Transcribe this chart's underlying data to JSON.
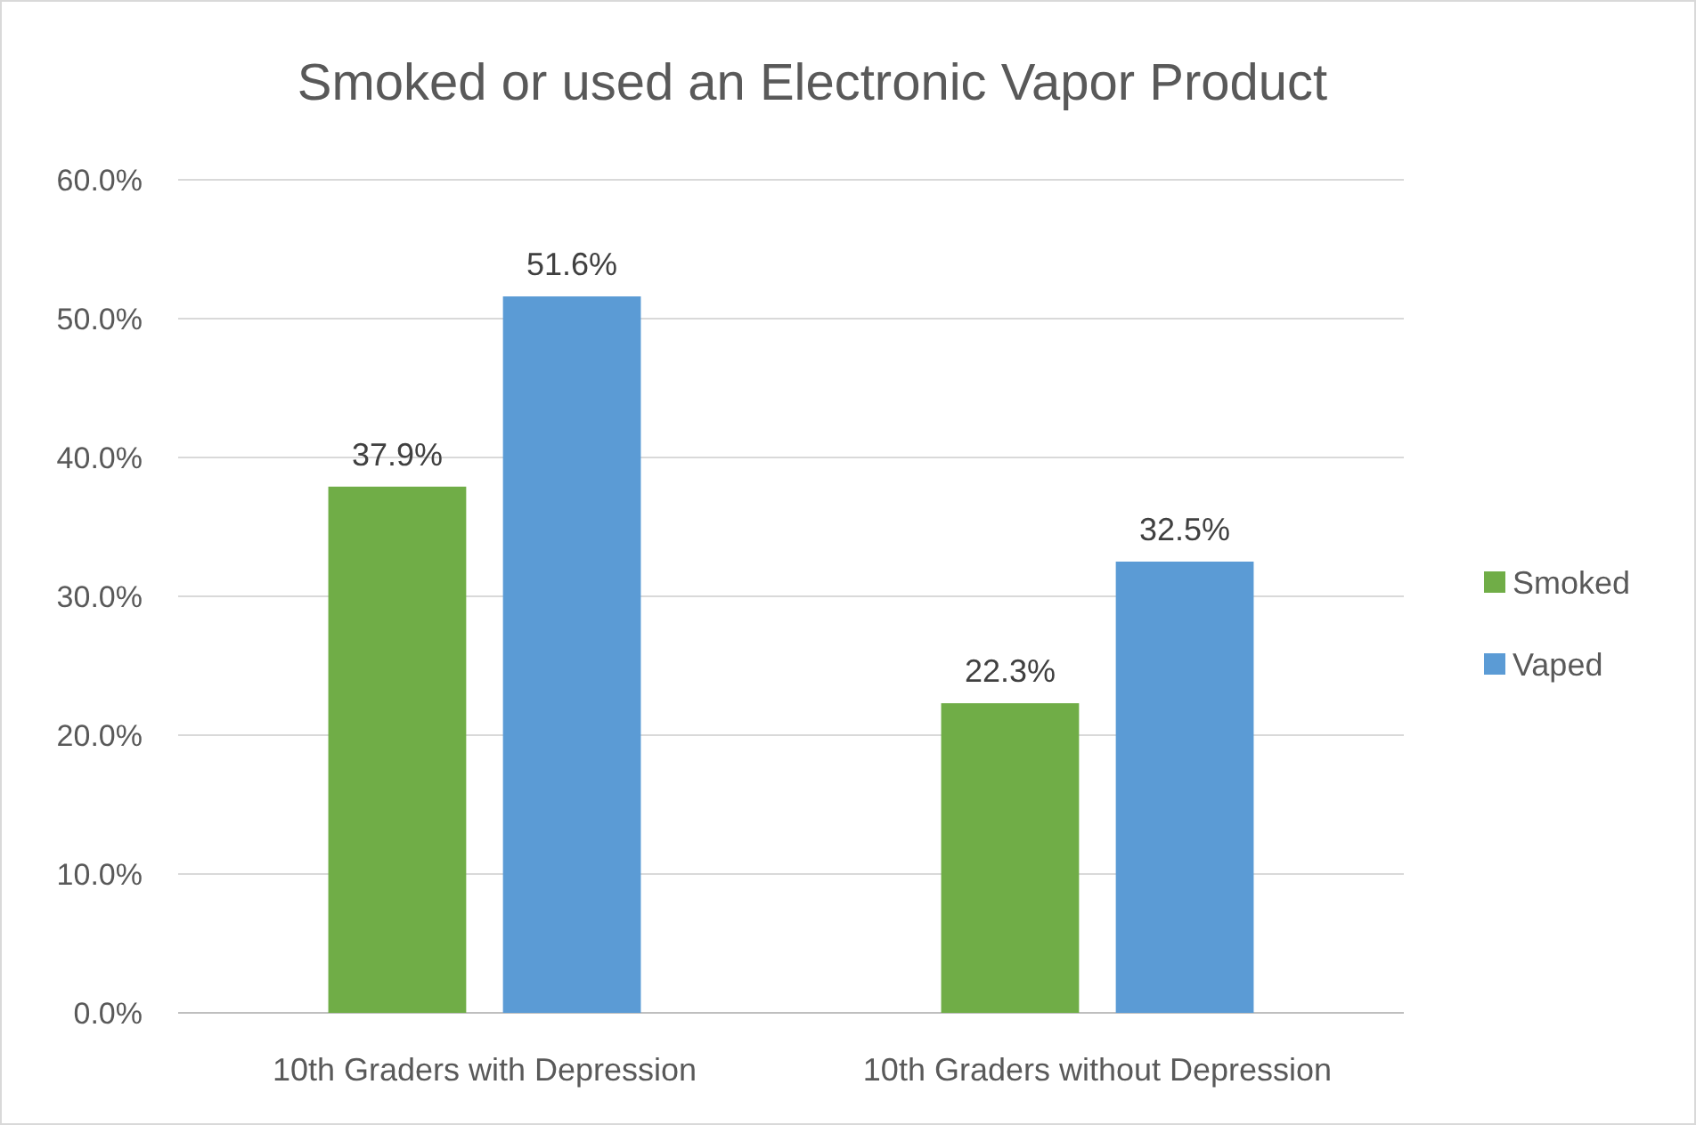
{
  "chart_data": {
    "type": "bar",
    "title": "Smoked or used an Electronic Vapor Product",
    "categories": [
      "10th Graders with Depression",
      "10th Graders without Depression"
    ],
    "series": [
      {
        "name": "Smoked",
        "color": "#70ad47",
        "values": [
          37.9,
          22.3
        ],
        "value_labels": [
          "37.9%",
          "22.3%"
        ]
      },
      {
        "name": "Vaped",
        "color": "#5b9bd5",
        "values": [
          51.6,
          32.5
        ],
        "value_labels": [
          "51.6%",
          "32.5%"
        ]
      }
    ],
    "ylim": [
      0,
      60
    ],
    "yticks": [
      {
        "value": 0,
        "label": "0.0%"
      },
      {
        "value": 10,
        "label": "10.0%"
      },
      {
        "value": 20,
        "label": "20.0%"
      },
      {
        "value": 30,
        "label": "30.0%"
      },
      {
        "value": 40,
        "label": "40.0%"
      },
      {
        "value": 50,
        "label": "50.0%"
      },
      {
        "value": 60,
        "label": "60.0%"
      }
    ],
    "grid": "y",
    "legend": "right"
  }
}
